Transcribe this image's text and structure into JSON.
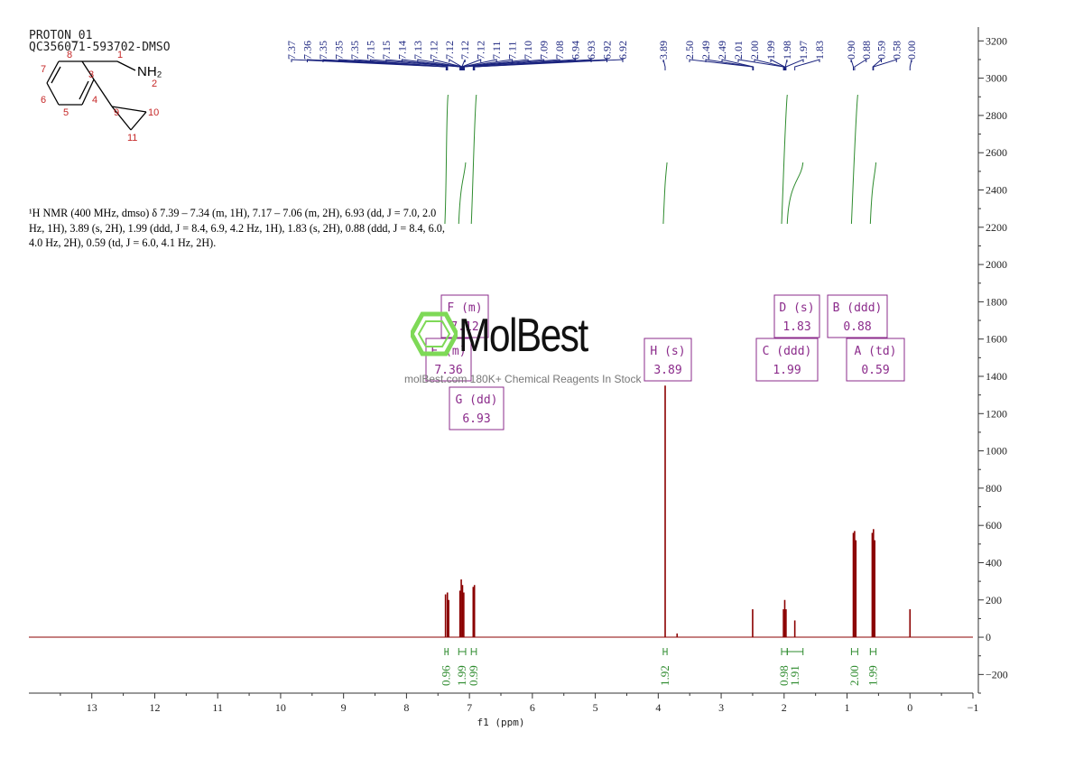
{
  "header": {
    "experiment": "PROTON_01",
    "sample_id": "QC356071-593702-DMSO"
  },
  "description": {
    "line1": "¹H NMR (400 MHz, dmso) δ 7.39 – 7.34 (m, 1H), 7.17 – 7.06 (m, 2H), 6.93 (dd, J = 7.0, 2.0",
    "line2": "Hz, 1H), 3.89 (s, 2H), 1.99 (ddd, J = 8.4, 6.9, 4.2 Hz, 1H), 1.83 (s, 2H), 0.88 (ddd, J = 8.4, 6.0,",
    "line3": "4.0 Hz, 2H), 0.59 (td, J = 6.0, 4.1 Hz, 2H)."
  },
  "structure": {
    "atom_labels": [
      "1",
      "2",
      "3",
      "4",
      "5",
      "6",
      "7",
      "8",
      "9",
      "10",
      "11"
    ],
    "group_label": "NH₂"
  },
  "watermark": {
    "brand": "MolBest",
    "tagline": "molBest.com 180K+ Chemical Reagents In Stock"
  },
  "colors": {
    "spectrum": "#8b0000",
    "peak_labels": "#1a237e",
    "integral": "#2e8b2e",
    "multiplet_box": "#8b2b8b",
    "axis": "#333333"
  },
  "chart_data": {
    "type": "line",
    "title": "",
    "xlabel": "f1 (ppm)",
    "ylabel": "",
    "xlim": [
      14,
      -1
    ],
    "ylim": [
      -300,
      3250
    ],
    "x_ticks": [
      13,
      12,
      11,
      10,
      9,
      8,
      7,
      6,
      5,
      4,
      3,
      2,
      1,
      0,
      -1
    ],
    "y_ticks": [
      -200,
      0,
      200,
      400,
      600,
      800,
      1000,
      1200,
      1400,
      1600,
      1800,
      2000,
      2200,
      2400,
      2600,
      2800,
      3000,
      3200
    ],
    "peak_labels": [
      "7.37",
      "7.36",
      "7.35",
      "7.35",
      "7.35",
      "7.15",
      "7.15",
      "7.14",
      "7.13",
      "7.12",
      "7.12",
      "7.12",
      "7.12",
      "7.11",
      "7.11",
      "7.10",
      "7.09",
      "7.08",
      "6.94",
      "6.93",
      "6.92",
      "6.92",
      "3.89",
      "2.50",
      "2.49",
      "2.49",
      "2.01",
      "2.00",
      "1.99",
      "1.98",
      "1.97",
      "1.83",
      "0.90",
      "0.88",
      "0.59",
      "0.58",
      "0.00"
    ],
    "peaks": [
      {
        "ppm": 7.38,
        "intensity": 230
      },
      {
        "ppm": 7.35,
        "intensity": 240
      },
      {
        "ppm": 7.33,
        "intensity": 200
      },
      {
        "ppm": 7.15,
        "intensity": 250
      },
      {
        "ppm": 7.13,
        "intensity": 310
      },
      {
        "ppm": 7.11,
        "intensity": 280
      },
      {
        "ppm": 7.09,
        "intensity": 240
      },
      {
        "ppm": 6.94,
        "intensity": 270
      },
      {
        "ppm": 6.92,
        "intensity": 280
      },
      {
        "ppm": 3.89,
        "intensity": 1350
      },
      {
        "ppm": 3.7,
        "intensity": 20
      },
      {
        "ppm": 2.5,
        "intensity": 150
      },
      {
        "ppm": 2.01,
        "intensity": 150
      },
      {
        "ppm": 1.99,
        "intensity": 200
      },
      {
        "ppm": 1.97,
        "intensity": 150
      },
      {
        "ppm": 1.83,
        "intensity": 90
      },
      {
        "ppm": 0.9,
        "intensity": 560
      },
      {
        "ppm": 0.88,
        "intensity": 570
      },
      {
        "ppm": 0.86,
        "intensity": 520
      },
      {
        "ppm": 0.6,
        "intensity": 560
      },
      {
        "ppm": 0.58,
        "intensity": 580
      },
      {
        "ppm": 0.56,
        "intensity": 520
      },
      {
        "ppm": 0.0,
        "intensity": 150
      }
    ],
    "multiplets": [
      {
        "letter": "F",
        "type": "m",
        "shift": "7.12"
      },
      {
        "letter": "E",
        "type": "m",
        "shift": "7.36"
      },
      {
        "letter": "G",
        "type": "dd",
        "shift": "6.93"
      },
      {
        "letter": "H",
        "type": "s",
        "shift": "3.89"
      },
      {
        "letter": "D",
        "type": "s",
        "shift": "1.83"
      },
      {
        "letter": "B",
        "type": "ddd",
        "shift": "0.88"
      },
      {
        "letter": "C",
        "type": "ddd",
        "shift": "1.99"
      },
      {
        "letter": "A",
        "type": "td",
        "shift": "0.59"
      }
    ],
    "integrals": [
      {
        "from": 7.39,
        "to": 7.34,
        "value": "0.96"
      },
      {
        "from": 7.17,
        "to": 7.06,
        "value": "1.99"
      },
      {
        "from": 6.97,
        "to": 6.89,
        "value": "0.99"
      },
      {
        "from": 3.92,
        "to": 3.86,
        "value": "1.92"
      },
      {
        "from": 2.04,
        "to": 1.95,
        "value": "0.98"
      },
      {
        "from": 1.95,
        "to": 1.7,
        "value": "1.91"
      },
      {
        "from": 0.93,
        "to": 0.83,
        "value": "2.00"
      },
      {
        "from": 0.63,
        "to": 0.54,
        "value": "1.99"
      }
    ]
  }
}
